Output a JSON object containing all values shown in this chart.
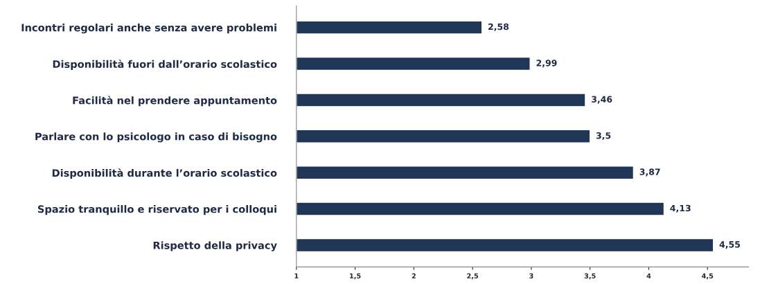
{
  "chart_data": {
    "type": "bar",
    "orientation": "horizontal",
    "categories": [
      "Incontri regolari anche senza avere problemi",
      "Disponibilità fuori dall’orario scolastico",
      "Facilità nel prendere appuntamento",
      "Parlare con lo psicologo in caso di bisogno",
      "Disponibilità durante l’orario scolastico",
      "Spazio tranquillo e riservato per i colloqui",
      "Rispetto della privacy"
    ],
    "values": [
      2.58,
      2.99,
      3.46,
      3.5,
      3.87,
      4.13,
      4.55
    ],
    "value_labels": [
      "2,58",
      "2,99",
      "3,46",
      "3,5",
      "3,87",
      "4,13",
      "4,55"
    ],
    "color": "#1f3657",
    "xlim": [
      1,
      4.85
    ],
    "xticks": [
      1,
      {
        "value": 1.5,
        "label": "1,5"
      },
      2,
      {
        "value": 2.5,
        "label": "2,5"
      },
      3,
      {
        "value": 3.5,
        "label": "3,5"
      },
      4,
      {
        "value": 4.5,
        "label": "4,5"
      }
    ],
    "grid": false,
    "legend": false
  }
}
